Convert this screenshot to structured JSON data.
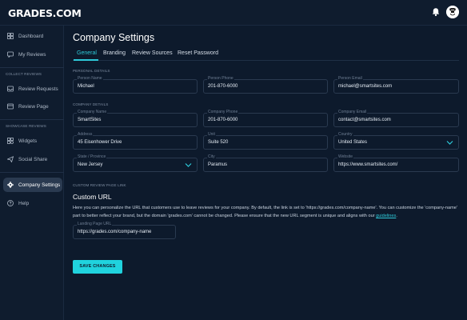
{
  "app": {
    "logo": "GRADES.COM"
  },
  "sidebar": {
    "items": [
      {
        "label": "Dashboard",
        "icon": "grid-icon"
      },
      {
        "label": "My Reviews",
        "icon": "chat-icon"
      },
      {
        "label": "Review Requests",
        "icon": "inbox-icon"
      },
      {
        "label": "Review Page",
        "icon": "page-icon"
      },
      {
        "label": "Widgets",
        "icon": "widget-icon"
      },
      {
        "label": "Social Share",
        "icon": "send-icon"
      },
      {
        "label": "Company Settings",
        "icon": "gear-icon"
      },
      {
        "label": "Help",
        "icon": "help-icon"
      }
    ],
    "sections": {
      "collect": "COLLECT REVIEWS",
      "showcase": "SHOWCASE REVIEWS"
    },
    "active_color": "#2a3a50"
  },
  "page": {
    "title": "Company Settings",
    "tabs": [
      "General",
      "Branding",
      "Review Sources",
      "Reset Password"
    ],
    "active_tab": "General"
  },
  "personal": {
    "section": "PERSONAL DETAILS",
    "fields": [
      {
        "label": "Person Name",
        "value": "Michael"
      },
      {
        "label": "Person Phone",
        "value": "201-870-6000"
      },
      {
        "label": "Person Email",
        "value": "michael@smartsites.com"
      }
    ]
  },
  "company": {
    "section": "COMPANY DETAILS",
    "fields": [
      {
        "label": "Company Name",
        "value": "SmartSites"
      },
      {
        "label": "Company Phone",
        "value": "201-870-6000"
      },
      {
        "label": "Company Email",
        "value": "contact@smartsites.com"
      },
      {
        "label": "Address",
        "value": "45 Eisenhower Drive"
      },
      {
        "label": "Unit",
        "value": "Suite 520"
      },
      {
        "label": "Country",
        "value": "United States"
      },
      {
        "label": "State / Province",
        "value": "New Jersey"
      },
      {
        "label": "City",
        "value": "Paramus"
      },
      {
        "label": "Website",
        "value": "https://www.smartsites.com/"
      }
    ]
  },
  "custom_url": {
    "section": "CUSTOM REVIEW PAGE LINK",
    "title": "Custom URL",
    "description": "Here you can personalize the URL that customers use to leave reviews for your company. By default, the link is set to 'https://grades.com/company-name'. You can customize the 'company-name' part to better reflect your brand, but the domain 'grades.com' cannot be changed. Please ensure that the new URL segment is unique and aligns with our",
    "link_text": "guidelines",
    "end": ".",
    "field_label": "Landing Page URL",
    "field_value": "https://grades.com/company-name"
  },
  "actions": {
    "save": "SAVE CHANGES"
  },
  "colors": {
    "accent": "#2ec9d8",
    "background": "#0d1a2c",
    "button": "#20d3de"
  }
}
